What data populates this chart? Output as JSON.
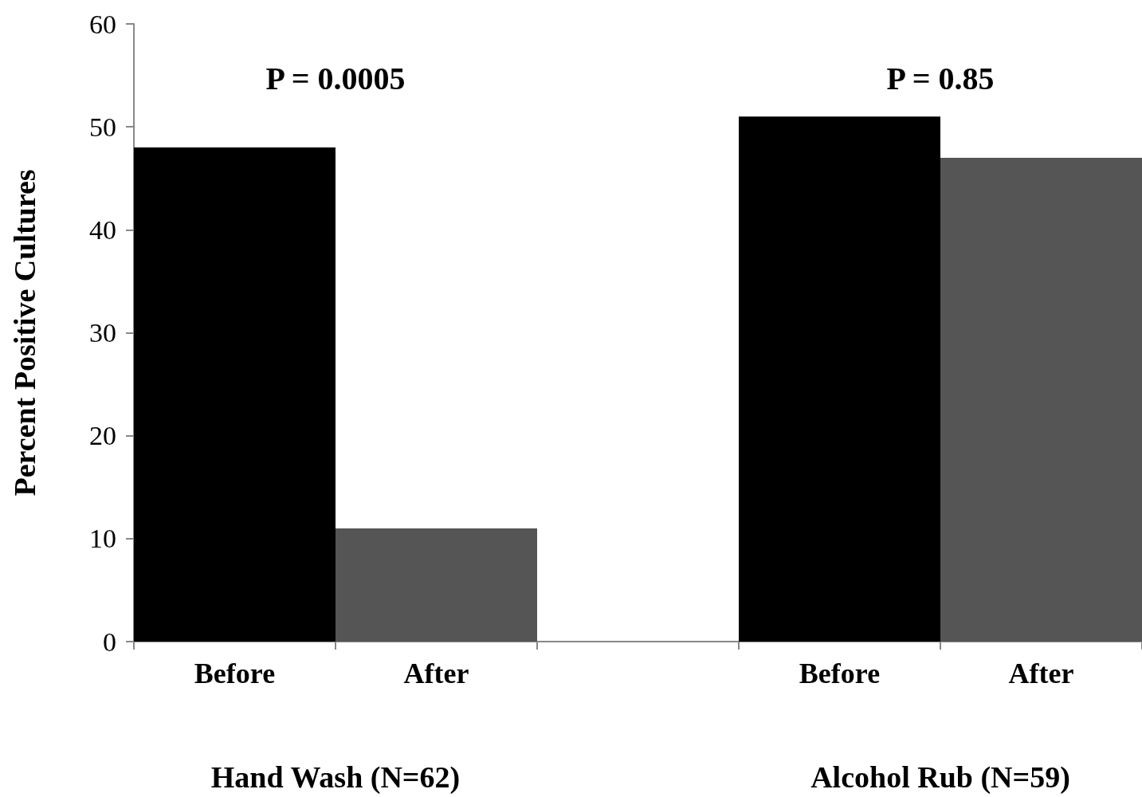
{
  "chart_data": {
    "type": "bar",
    "ylabel": "Percent Positive Cultures",
    "categories": [
      "Before",
      "After",
      null,
      "Before",
      "After"
    ],
    "values": [
      48,
      11,
      null,
      51,
      47
    ],
    "colors": [
      "#000000",
      "#555555",
      "#000000",
      "#000000",
      "#555555"
    ],
    "ylim": [
      0,
      60
    ],
    "yticks": [
      0,
      10,
      20,
      30,
      40,
      50,
      60
    ],
    "grid": false,
    "annotations": [
      "P = 0.0005",
      "P = 0.85",
      "Hand Wash (N=62)",
      "Alcohol Rub (N=59)"
    ]
  }
}
